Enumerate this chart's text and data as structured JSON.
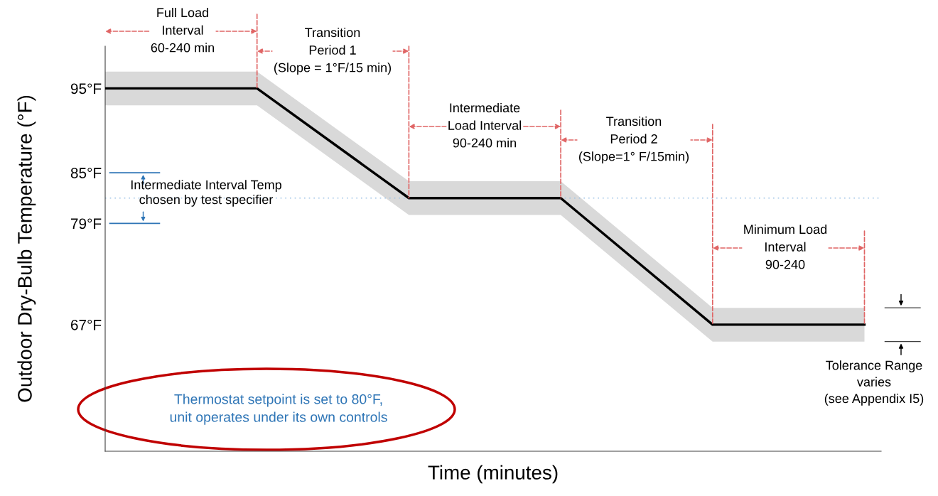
{
  "chart_data": {
    "type": "line",
    "xlabel": "Time (minutes)",
    "ylabel": "Outdoor Dry-Bulb Temperature (°F)",
    "categories": [
      null,
      null,
      null,
      null,
      null,
      null
    ],
    "ylim": [
      52,
      100
    ],
    "yticks": [
      {
        "value": 95,
        "label": "95°F"
      },
      {
        "value": 85,
        "label": "85°F"
      },
      {
        "value": 79,
        "label": "79°F"
      },
      {
        "value": 67,
        "label": "67°F"
      }
    ],
    "tick_labels": "y",
    "grid": false,
    "legend": false,
    "series": [
      {
        "color": "#000000",
        "values": [
          95,
          95,
          82,
          82,
          67,
          67
        ],
        "lower": [
          93,
          93,
          80,
          80,
          65,
          65
        ],
        "upper": [
          97,
          97,
          84,
          84,
          69,
          69
        ]
      }
    ],
    "ref_lines": [
      {
        "axis": "y",
        "value": 82,
        "color": "#9dc3e6",
        "line_style": "dotted"
      }
    ],
    "annotations": [
      "Full Load\nInterval\n60-240 min",
      "Transition\nPeriod 1\n(Slope = 1°F/15 min)",
      "Intermediate\nLoad Interval\n90-240 min",
      "Transition\nPeriod 2\n(Slope=1° F/15min)",
      "Minimum Load\nInterval\n90-240",
      "Intermediate Interval Temp\nchosen by test specifier",
      "Thermostat setpoint is set to 80°F,\nunit operates under its own controls",
      "Tolerance Range\nvaries\n(see Appendix I5)"
    ]
  }
}
